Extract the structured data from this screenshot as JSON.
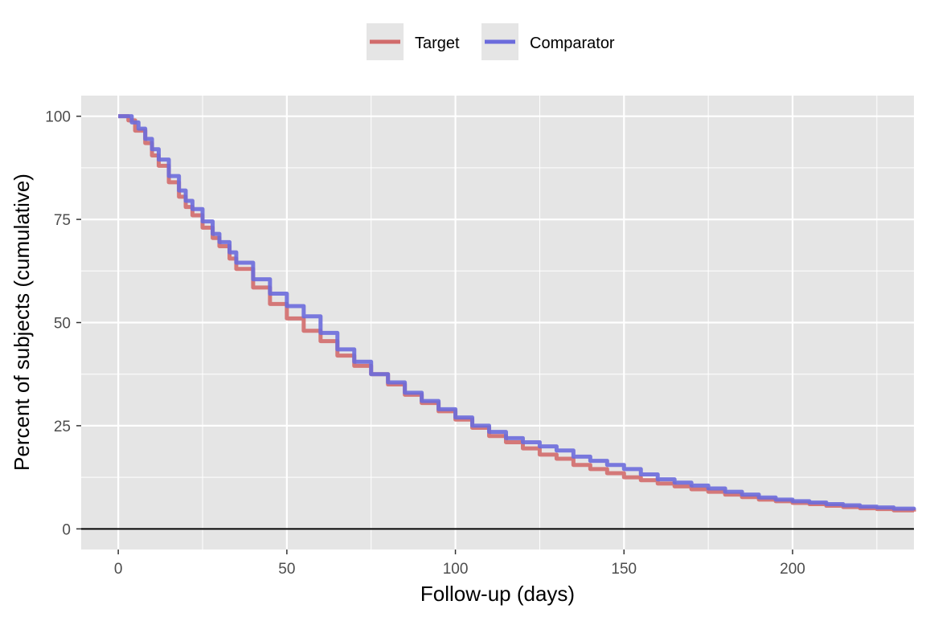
{
  "chart_data": {
    "type": "line",
    "xlabel": "Follow-up (days)",
    "ylabel": "Percent of subjects (cumulative)",
    "xlim": [
      -11,
      236
    ],
    "ylim": [
      -5,
      105
    ],
    "x_ticks": [
      0,
      50,
      100,
      150,
      200
    ],
    "y_ticks": [
      0,
      25,
      50,
      75,
      100
    ],
    "grid": true,
    "legend_position": "top",
    "reference_line_y": 0,
    "colors": {
      "panel_background": "#e5e5e5",
      "grid": "#ffffff",
      "target": "#d16b6b",
      "comparator": "#6b6bdc",
      "reference_line": "#000000",
      "tick_text": "#4d4d4d"
    },
    "series": [
      {
        "name": "Target",
        "color": "#d16b6b",
        "points": [
          [
            0,
            100
          ],
          [
            1,
            100
          ],
          [
            2,
            100
          ],
          [
            3,
            99
          ],
          [
            5,
            96.5
          ],
          [
            8,
            93.5
          ],
          [
            10,
            90.5
          ],
          [
            12,
            88
          ],
          [
            15,
            84
          ],
          [
            18,
            80.5
          ],
          [
            20,
            78
          ],
          [
            22,
            76
          ],
          [
            25,
            73
          ],
          [
            28,
            70.5
          ],
          [
            30,
            68.5
          ],
          [
            33,
            65.5
          ],
          [
            35,
            63
          ],
          [
            40,
            58.5
          ],
          [
            45,
            54.5
          ],
          [
            50,
            51
          ],
          [
            55,
            48
          ],
          [
            60,
            45.5
          ],
          [
            65,
            42
          ],
          [
            70,
            39.5
          ],
          [
            75,
            37.5
          ],
          [
            80,
            35
          ],
          [
            85,
            32.5
          ],
          [
            90,
            30.5
          ],
          [
            95,
            28.5
          ],
          [
            100,
            26.5
          ],
          [
            105,
            24.5
          ],
          [
            110,
            22.5
          ],
          [
            115,
            21
          ],
          [
            120,
            19.5
          ],
          [
            125,
            18
          ],
          [
            130,
            17
          ],
          [
            135,
            15.5
          ],
          [
            140,
            14.5
          ],
          [
            145,
            13.5
          ],
          [
            150,
            12.5
          ],
          [
            155,
            11.8
          ],
          [
            160,
            11
          ],
          [
            165,
            10.3
          ],
          [
            170,
            9.6
          ],
          [
            175,
            9
          ],
          [
            180,
            8.3
          ],
          [
            185,
            7.7
          ],
          [
            190,
            7.1
          ],
          [
            195,
            6.7
          ],
          [
            200,
            6.3
          ],
          [
            205,
            6
          ],
          [
            210,
            5.6
          ],
          [
            215,
            5.3
          ],
          [
            220,
            5
          ],
          [
            225,
            4.8
          ],
          [
            230,
            4.5
          ],
          [
            236,
            4.2
          ]
        ]
      },
      {
        "name": "Comparator",
        "color": "#6b6bdc",
        "points": [
          [
            0,
            100
          ],
          [
            1,
            100
          ],
          [
            2,
            100
          ],
          [
            3,
            100
          ],
          [
            4,
            98.5
          ],
          [
            6,
            97
          ],
          [
            8,
            94.5
          ],
          [
            10,
            92
          ],
          [
            12,
            89.5
          ],
          [
            15,
            85.5
          ],
          [
            18,
            82
          ],
          [
            20,
            79.5
          ],
          [
            22,
            77.5
          ],
          [
            25,
            74.5
          ],
          [
            28,
            71.5
          ],
          [
            30,
            69.5
          ],
          [
            33,
            67
          ],
          [
            35,
            64.5
          ],
          [
            40,
            60.5
          ],
          [
            45,
            57
          ],
          [
            50,
            54
          ],
          [
            55,
            51.5
          ],
          [
            60,
            47.5
          ],
          [
            65,
            43.5
          ],
          [
            70,
            40.5
          ],
          [
            75,
            37.5
          ],
          [
            80,
            35.5
          ],
          [
            85,
            33
          ],
          [
            90,
            31
          ],
          [
            95,
            29
          ],
          [
            100,
            27
          ],
          [
            105,
            25
          ],
          [
            110,
            23.5
          ],
          [
            115,
            22
          ],
          [
            120,
            21
          ],
          [
            125,
            20
          ],
          [
            130,
            19
          ],
          [
            135,
            17.5
          ],
          [
            140,
            16.5
          ],
          [
            145,
            15.5
          ],
          [
            150,
            14.5
          ],
          [
            155,
            13.2
          ],
          [
            160,
            12
          ],
          [
            165,
            11.2
          ],
          [
            170,
            10.5
          ],
          [
            175,
            9.8
          ],
          [
            180,
            9
          ],
          [
            185,
            8.3
          ],
          [
            190,
            7.6
          ],
          [
            195,
            7.1
          ],
          [
            200,
            6.7
          ],
          [
            205,
            6.4
          ],
          [
            210,
            6
          ],
          [
            215,
            5.7
          ],
          [
            220,
            5.4
          ],
          [
            225,
            5.2
          ],
          [
            230,
            4.9
          ],
          [
            236,
            4.6
          ]
        ]
      }
    ]
  }
}
